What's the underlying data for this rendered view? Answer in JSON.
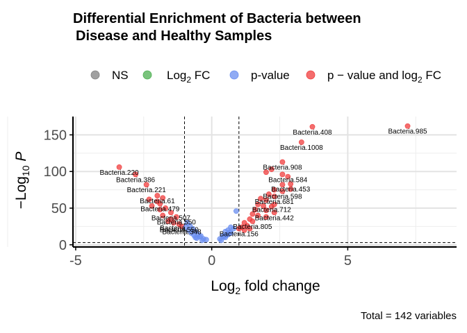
{
  "chart_data": {
    "type": "scatter",
    "title": "Differential Enrichment of Bacteria between",
    "subtitle": "Disease and Healthy Samples",
    "xlabel": "Log₂ fold change",
    "ylabel": "−Log₁₀ P",
    "caption": "Total = 142 variables",
    "xlim": [
      -5.1,
      9
    ],
    "ylim": [
      -3,
      175
    ],
    "x_ticks": [
      -5,
      0,
      5
    ],
    "x_tick_labels": [
      "-5",
      "0",
      "5"
    ],
    "y_ticks": [
      0,
      50,
      100,
      150
    ],
    "y_tick_labels": [
      "0",
      "50",
      "100",
      "150"
    ],
    "fc_cutoff": 1,
    "p_cutoff_line": 3,
    "grid": true,
    "legend_position": "top",
    "legend": [
      {
        "key": "NS",
        "label": "NS",
        "color": "#808080"
      },
      {
        "key": "fc",
        "label": "Log₂ FC",
        "color": "#4caf50"
      },
      {
        "key": "p",
        "label": "p-value",
        "color": "#6b8ff0"
      },
      {
        "key": "both",
        "label": "p − value and log₂ FC",
        "color": "#f03c3c"
      }
    ],
    "series": [
      {
        "key": "both",
        "points": [
          [
            7.2,
            162
          ],
          [
            3.7,
            161
          ],
          [
            3.3,
            140
          ],
          [
            2.6,
            113
          ],
          [
            2.2,
            103
          ],
          [
            2.0,
            99
          ],
          [
            2.6,
            96
          ],
          [
            2.8,
            93
          ],
          [
            2.9,
            83
          ],
          [
            2.6,
            82
          ],
          [
            2.9,
            76
          ],
          [
            2.3,
            75
          ],
          [
            2.1,
            69
          ],
          [
            2.6,
            73
          ],
          [
            2.3,
            66
          ],
          [
            1.8,
            63
          ],
          [
            2.0,
            61
          ],
          [
            1.7,
            55
          ],
          [
            2.3,
            55
          ],
          [
            1.9,
            53
          ],
          [
            2.2,
            52
          ],
          [
            1.6,
            48
          ],
          [
            2.0,
            47
          ],
          [
            2.3,
            44
          ],
          [
            1.5,
            42
          ],
          [
            1.7,
            40
          ],
          [
            2.0,
            38
          ],
          [
            1.4,
            35
          ],
          [
            1.5,
            32
          ],
          [
            1.2,
            30
          ],
          [
            1.3,
            26
          ],
          [
            1.1,
            24
          ],
          [
            1.0,
            22
          ],
          [
            1.2,
            20
          ],
          [
            1.4,
            22
          ],
          [
            -3.4,
            106
          ],
          [
            -2.8,
            96
          ],
          [
            -2.4,
            82
          ],
          [
            -2.0,
            67
          ],
          [
            -1.8,
            64
          ],
          [
            -2.3,
            62
          ],
          [
            -2.0,
            59
          ],
          [
            -1.9,
            56
          ],
          [
            -2.2,
            53
          ],
          [
            -1.7,
            50
          ],
          [
            -1.9,
            48
          ],
          [
            -1.5,
            44
          ],
          [
            -1.8,
            40
          ],
          [
            -1.3,
            38
          ],
          [
            -1.5,
            35
          ],
          [
            -1.6,
            32
          ],
          [
            -1.4,
            30
          ],
          [
            -1.2,
            28
          ],
          [
            -1.1,
            25
          ]
        ]
      },
      {
        "key": "p",
        "points": [
          [
            0.9,
            46
          ],
          [
            0.8,
            22
          ],
          [
            0.7,
            24
          ],
          [
            0.6,
            20
          ],
          [
            0.5,
            18
          ],
          [
            0.7,
            16
          ],
          [
            0.6,
            14
          ],
          [
            0.4,
            12
          ],
          [
            0.5,
            10
          ],
          [
            0.3,
            8
          ],
          [
            0.35,
            6
          ],
          [
            0.45,
            11
          ],
          [
            0.55,
            13
          ],
          [
            0.65,
            17
          ],
          [
            -0.9,
            30
          ],
          [
            -0.8,
            26
          ],
          [
            -0.7,
            22
          ],
          [
            -0.85,
            20
          ],
          [
            -0.6,
            18
          ],
          [
            -0.75,
            16
          ],
          [
            -0.5,
            14
          ],
          [
            -0.4,
            12
          ],
          [
            -0.6,
            10
          ],
          [
            -0.3,
            8
          ],
          [
            -0.2,
            7
          ],
          [
            -0.35,
            6
          ],
          [
            -0.55,
            9
          ],
          [
            -0.65,
            13
          ],
          [
            -0.95,
            24
          ],
          [
            -0.45,
            11
          ]
        ]
      }
    ],
    "labels": [
      {
        "text": "Bacteria.985",
        "x": 7.2,
        "y": 162
      },
      {
        "text": "Bacteria.408",
        "x": 3.7,
        "y": 161
      },
      {
        "text": "Bacteria.1008",
        "x": 3.3,
        "y": 140
      },
      {
        "text": "Bacteria.908",
        "x": 2.6,
        "y": 113
      },
      {
        "text": "Bacteria.584",
        "x": 2.8,
        "y": 96
      },
      {
        "text": "Bacteria.453",
        "x": 2.9,
        "y": 83
      },
      {
        "text": "Bacteria.598",
        "x": 2.6,
        "y": 73
      },
      {
        "text": "Bacteria.681",
        "x": 2.3,
        "y": 66
      },
      {
        "text": "Bacteria.712",
        "x": 2.2,
        "y": 55
      },
      {
        "text": "Bacteria.442",
        "x": 2.3,
        "y": 44
      },
      {
        "text": "Bacteria.805",
        "x": 1.5,
        "y": 32
      },
      {
        "text": "Bacteria.156",
        "x": 1.0,
        "y": 22
      },
      {
        "text": "Bacteria.220",
        "x": -3.4,
        "y": 106
      },
      {
        "text": "Bacteria.386",
        "x": -2.8,
        "y": 96
      },
      {
        "text": "Bacteria.221",
        "x": -2.4,
        "y": 82
      },
      {
        "text": "Bacteria.61",
        "x": -2.0,
        "y": 67
      },
      {
        "text": "Bacteria.479",
        "x": -1.9,
        "y": 56
      },
      {
        "text": "Bacteria.507",
        "x": -1.5,
        "y": 44
      },
      {
        "text": "Bacteria.550",
        "x": -1.3,
        "y": 38
      },
      {
        "text": "Bacteria.",
        "x": -1.4,
        "y": 30
      },
      {
        "text": "Bacteria.550",
        "x": -1.2,
        "y": 28
      },
      {
        "text": "Bacteria.348",
        "x": -1.1,
        "y": 25
      }
    ]
  }
}
